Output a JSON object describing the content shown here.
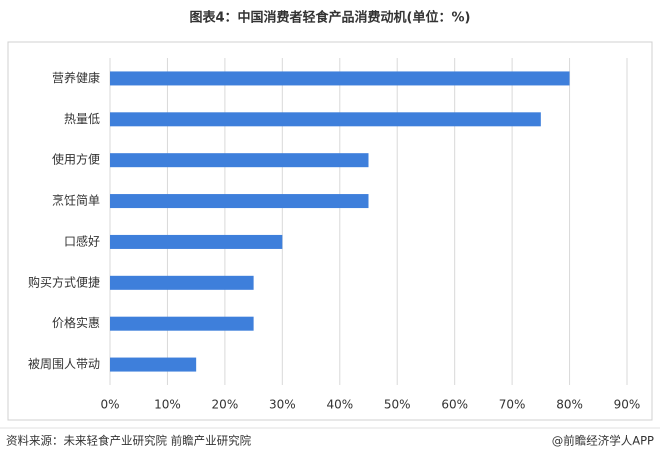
{
  "chart_data": {
    "type": "barh",
    "title": "图表4：中国消费者轻食产品消费动机(单位：%)",
    "categories": [
      "营养健康",
      "热量低",
      "使用方便",
      "烹饪简单",
      "口感好",
      "购买方式便捷",
      "价格实惠",
      "被周围人带动"
    ],
    "values": [
      80,
      75,
      45,
      45,
      30,
      25,
      25,
      15
    ],
    "color": "#3e7fdb",
    "xlim": [
      0,
      90
    ],
    "xticks": [
      {
        "value": 0,
        "label": "0%"
      },
      {
        "value": 10,
        "label": "10%"
      },
      {
        "value": 20,
        "label": "20%"
      },
      {
        "value": 30,
        "label": "30%"
      },
      {
        "value": 40,
        "label": "40%"
      },
      {
        "value": 50,
        "label": "50%"
      },
      {
        "value": 60,
        "label": "60%"
      },
      {
        "value": 70,
        "label": "70%"
      },
      {
        "value": 80,
        "label": "80%"
      },
      {
        "value": 90,
        "label": "90%"
      }
    ],
    "grid": true,
    "source": "资料来源：未来轻食产业研究院 前瞻产业研究院",
    "credit": "@前瞻经济学人APP"
  }
}
